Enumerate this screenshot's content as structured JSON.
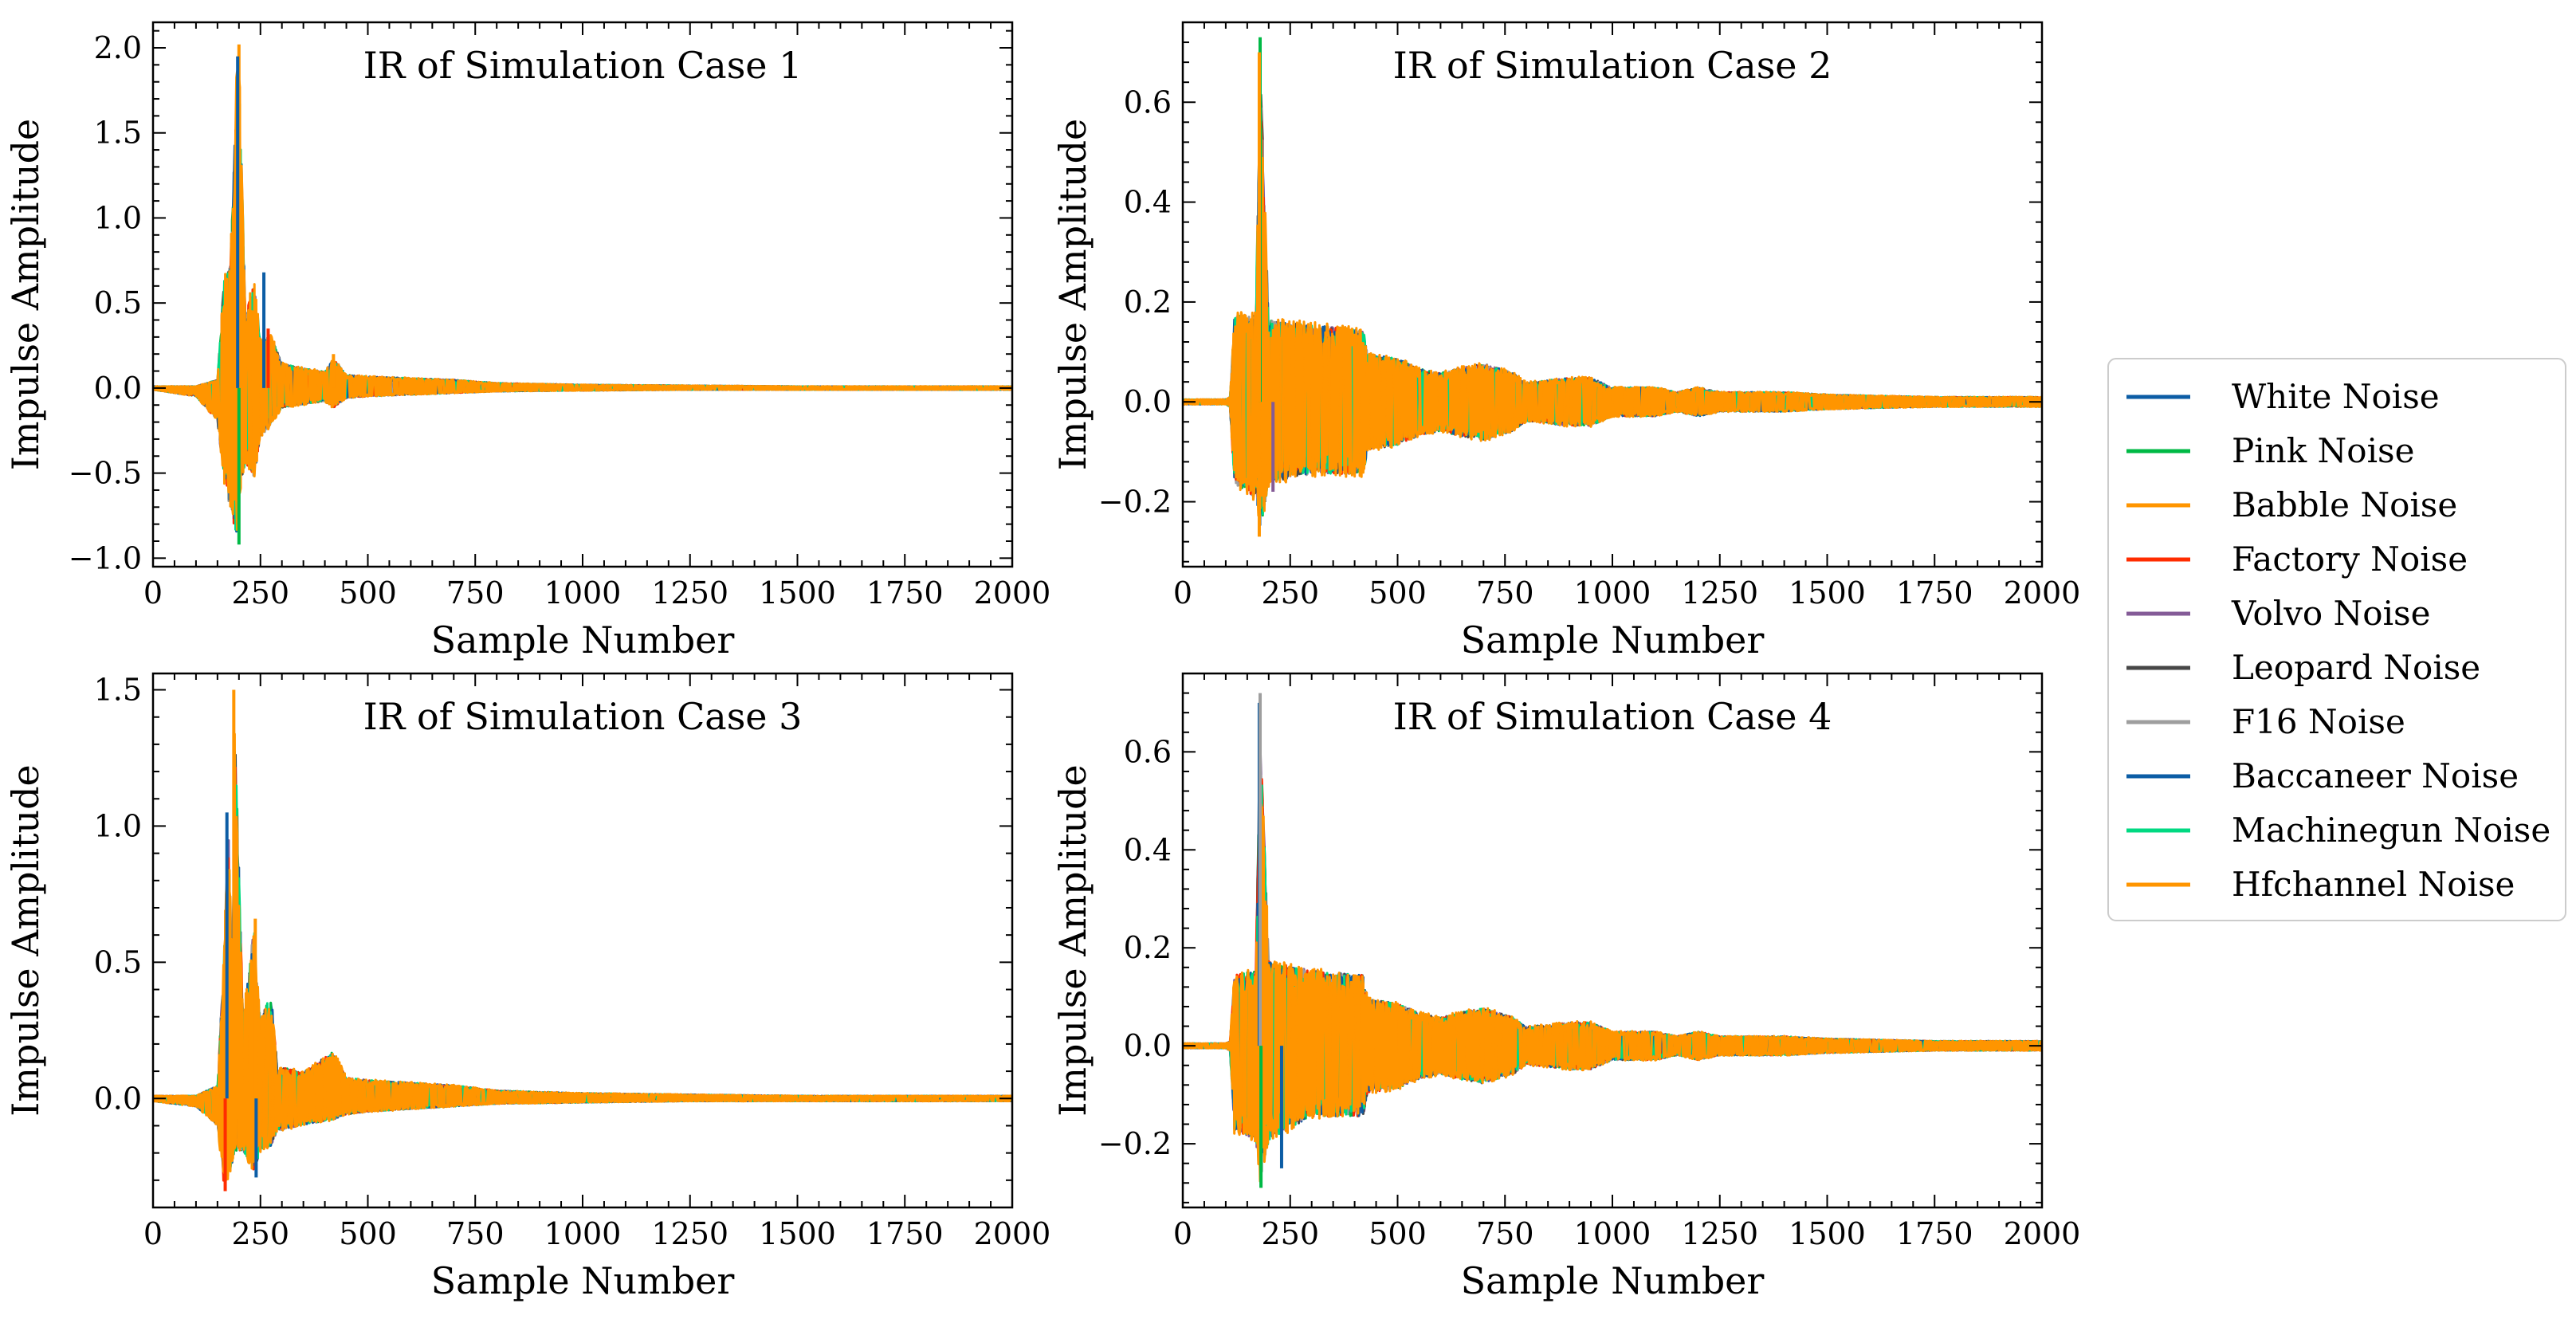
{
  "figure": {
    "legend_placement": "right",
    "legend_entries": [
      {
        "name": "White Noise",
        "color": "#0C5DA5"
      },
      {
        "name": "Pink Noise",
        "color": "#00B945"
      },
      {
        "name": "Babble Noise",
        "color": "#FF9500"
      },
      {
        "name": "Factory Noise",
        "color": "#FF2C00"
      },
      {
        "name": "Volvo Noise",
        "color": "#845B97"
      },
      {
        "name": "Leopard Noise",
        "color": "#474747"
      },
      {
        "name": "F16 Noise",
        "color": "#9E9E9E"
      },
      {
        "name": "Baccaneer Noise",
        "color": "#0C5DA5"
      },
      {
        "name": "Machinegun Noise",
        "color": "#00D982"
      },
      {
        "name": "Hfchannel Noise",
        "color": "#FF9500"
      }
    ]
  },
  "chart_data": [
    {
      "type": "line",
      "title": "IR of Simulation Case 1",
      "xlabel": "Sample Number",
      "ylabel": "Impulse Amplitude",
      "xlim": [
        0,
        2000
      ],
      "ylim": [
        -1.05,
        2.15
      ],
      "xticks": [
        0,
        250,
        500,
        750,
        1000,
        1250,
        1500,
        1750,
        2000
      ],
      "xtick_labels": [
        "0",
        "250",
        "500",
        "750",
        "1000",
        "1250",
        "1500",
        "1750",
        "2000"
      ],
      "yticks": [
        -1.0,
        -0.5,
        0.0,
        0.5,
        1.0,
        1.5,
        2.0
      ],
      "ytick_labels": [
        "−1.0",
        "−0.5",
        "0.0",
        "0.5",
        "1.0",
        "1.5",
        "2.0"
      ],
      "grid": false,
      "envelope": {
        "x": [
          0,
          100,
          150,
          165,
          180,
          195,
          200,
          215,
          235,
          250,
          275,
          300,
          350,
          400,
          420,
          450,
          500,
          600,
          700,
          800,
          1000,
          1250,
          1500,
          1750,
          2000
        ],
        "upper": [
          0.01,
          0.01,
          0.05,
          0.65,
          0.75,
          1.95,
          2.0,
          0.45,
          0.65,
          0.3,
          0.32,
          0.15,
          0.12,
          0.1,
          0.18,
          0.08,
          0.07,
          0.06,
          0.05,
          0.03,
          0.02,
          0.015,
          0.01,
          0.01,
          0.01
        ],
        "lower": [
          -0.01,
          -0.05,
          -0.2,
          -0.55,
          -0.75,
          -0.9,
          -0.65,
          -0.45,
          -0.55,
          -0.3,
          -0.22,
          -0.12,
          -0.1,
          -0.08,
          -0.12,
          -0.06,
          -0.05,
          -0.04,
          -0.03,
          -0.02,
          -0.015,
          -0.01,
          -0.01,
          -0.01,
          -0.01
        ]
      },
      "spikes": [
        {
          "x": 200,
          "y": 2.02,
          "series": "Babble Noise"
        },
        {
          "x": 197,
          "y": 1.95,
          "series": "White Noise"
        },
        {
          "x": 258,
          "y": 0.68,
          "series": "White Noise"
        },
        {
          "x": 268,
          "y": 0.35,
          "series": "Factory Noise"
        },
        {
          "x": 200,
          "y": -0.92,
          "series": "Pink Noise"
        },
        {
          "x": 420,
          "y": 0.2,
          "series": "Babble Noise"
        }
      ]
    },
    {
      "type": "line",
      "title": "IR of Simulation Case 2",
      "xlabel": "Sample Number",
      "ylabel": "Impulse Amplitude",
      "xlim": [
        0,
        2000
      ],
      "ylim": [
        -0.33,
        0.76
      ],
      "xticks": [
        0,
        250,
        500,
        750,
        1000,
        1250,
        1500,
        1750,
        2000
      ],
      "xtick_labels": [
        "0",
        "250",
        "500",
        "750",
        "1000",
        "1250",
        "1500",
        "1750",
        "2000"
      ],
      "yticks": [
        -0.2,
        0.0,
        0.2,
        0.4,
        0.6
      ],
      "ytick_labels": [
        "−0.2",
        "0.0",
        "0.2",
        "0.4",
        "0.6"
      ],
      "grid": false,
      "envelope": {
        "x": [
          0,
          100,
          110,
          120,
          170,
          180,
          200,
          300,
          420,
          430,
          500,
          550,
          600,
          640,
          700,
          770,
          800,
          900,
          950,
          1000,
          1100,
          1150,
          1200,
          1250,
          1400,
          1500,
          1750,
          2000
        ],
        "upper": [
          0.005,
          0.005,
          0.01,
          0.18,
          0.18,
          0.72,
          0.17,
          0.16,
          0.15,
          0.1,
          0.09,
          0.07,
          0.06,
          0.07,
          0.08,
          0.06,
          0.04,
          0.05,
          0.05,
          0.03,
          0.03,
          0.02,
          0.03,
          0.02,
          0.02,
          0.015,
          0.01,
          0.01
        ],
        "lower": [
          -0.005,
          -0.005,
          -0.01,
          -0.17,
          -0.2,
          -0.27,
          -0.17,
          -0.15,
          -0.15,
          -0.1,
          -0.09,
          -0.07,
          -0.06,
          -0.07,
          -0.08,
          -0.06,
          -0.04,
          -0.05,
          -0.05,
          -0.03,
          -0.03,
          -0.02,
          -0.03,
          -0.02,
          -0.02,
          -0.015,
          -0.01,
          -0.01
        ]
      },
      "spikes": [
        {
          "x": 180,
          "y": 0.73,
          "series": "Pink Noise"
        },
        {
          "x": 178,
          "y": 0.7,
          "series": "Babble Noise"
        },
        {
          "x": 178,
          "y": -0.27,
          "series": "Babble Noise"
        },
        {
          "x": 210,
          "y": -0.18,
          "series": "Volvo Noise"
        }
      ]
    },
    {
      "type": "line",
      "title": "IR of Simulation Case 3",
      "xlabel": "Sample Number",
      "ylabel": "Impulse Amplitude",
      "xlim": [
        0,
        2000
      ],
      "ylim": [
        -0.4,
        1.56
      ],
      "xticks": [
        0,
        250,
        500,
        750,
        1000,
        1250,
        1500,
        1750,
        2000
      ],
      "xtick_labels": [
        "0",
        "250",
        "500",
        "750",
        "1000",
        "1250",
        "1500",
        "1750",
        "2000"
      ],
      "yticks": [
        0.0,
        0.5,
        1.0,
        1.5
      ],
      "ytick_labels": [
        "0.0",
        "0.5",
        "1.0",
        "1.5"
      ],
      "grid": false,
      "envelope": {
        "x": [
          0,
          100,
          150,
          165,
          175,
          185,
          190,
          210,
          235,
          250,
          275,
          290,
          300,
          350,
          420,
          450,
          500,
          600,
          700,
          800,
          1000,
          1250,
          1500,
          1750,
          2000
        ],
        "upper": [
          0.01,
          0.01,
          0.05,
          0.55,
          1.05,
          0.5,
          1.5,
          0.3,
          0.66,
          0.3,
          0.4,
          0.1,
          0.12,
          0.1,
          0.18,
          0.08,
          0.07,
          0.06,
          0.05,
          0.03,
          0.02,
          0.015,
          0.01,
          0.01,
          0.01
        ],
        "lower": [
          -0.01,
          -0.03,
          -0.1,
          -0.33,
          -0.3,
          -0.25,
          -0.2,
          -0.2,
          -0.28,
          -0.2,
          -0.18,
          -0.12,
          -0.12,
          -0.1,
          -0.08,
          -0.06,
          -0.05,
          -0.04,
          -0.03,
          -0.02,
          -0.015,
          -0.01,
          -0.01,
          -0.01,
          -0.01
        ]
      },
      "spikes": [
        {
          "x": 188,
          "y": 1.5,
          "series": "Babble Noise"
        },
        {
          "x": 172,
          "y": 1.05,
          "series": "White Noise"
        },
        {
          "x": 168,
          "y": -0.34,
          "series": "Factory Noise"
        },
        {
          "x": 238,
          "y": 0.66,
          "series": "Babble Noise"
        },
        {
          "x": 240,
          "y": -0.29,
          "series": "White Noise"
        }
      ]
    },
    {
      "type": "line",
      "title": "IR of Simulation Case 4",
      "xlabel": "Sample Number",
      "ylabel": "Impulse Amplitude",
      "xlim": [
        0,
        2000
      ],
      "ylim": [
        -0.33,
        0.76
      ],
      "xticks": [
        0,
        250,
        500,
        750,
        1000,
        1250,
        1500,
        1750,
        2000
      ],
      "xtick_labels": [
        "0",
        "250",
        "500",
        "750",
        "1000",
        "1250",
        "1500",
        "1750",
        "2000"
      ],
      "yticks": [
        -0.2,
        0.0,
        0.2,
        0.4,
        0.6
      ],
      "ytick_labels": [
        "−0.2",
        "0.0",
        "0.2",
        "0.4",
        "0.6"
      ],
      "grid": false,
      "envelope": {
        "x": [
          0,
          100,
          110,
          120,
          170,
          180,
          200,
          300,
          420,
          430,
          500,
          550,
          600,
          640,
          700,
          770,
          800,
          900,
          950,
          1000,
          1100,
          1150,
          1200,
          1250,
          1400,
          1500,
          1750,
          2000
        ],
        "upper": [
          0.005,
          0.005,
          0.01,
          0.15,
          0.16,
          0.71,
          0.18,
          0.16,
          0.15,
          0.1,
          0.09,
          0.07,
          0.06,
          0.07,
          0.08,
          0.06,
          0.04,
          0.05,
          0.05,
          0.03,
          0.03,
          0.02,
          0.03,
          0.02,
          0.02,
          0.015,
          0.01,
          0.01
        ],
        "lower": [
          -0.005,
          -0.005,
          -0.01,
          -0.18,
          -0.2,
          -0.29,
          -0.2,
          -0.15,
          -0.15,
          -0.1,
          -0.09,
          -0.07,
          -0.06,
          -0.07,
          -0.08,
          -0.06,
          -0.04,
          -0.05,
          -0.05,
          -0.03,
          -0.03,
          -0.02,
          -0.03,
          -0.02,
          -0.02,
          -0.015,
          -0.01,
          -0.01
        ]
      },
      "spikes": [
        {
          "x": 178,
          "y": 0.7,
          "series": "White Noise"
        },
        {
          "x": 180,
          "y": 0.72,
          "series": "F16 Noise"
        },
        {
          "x": 182,
          "y": -0.29,
          "series": "Pink Noise"
        },
        {
          "x": 230,
          "y": -0.25,
          "series": "White Noise"
        }
      ]
    }
  ]
}
